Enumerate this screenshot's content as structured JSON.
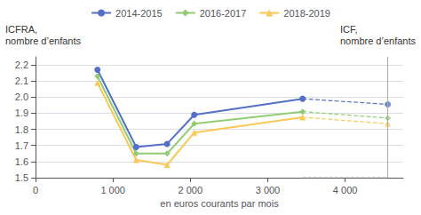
{
  "chart_data": {
    "type": "line",
    "xlabel": "en euros courants par mois",
    "ylabel": [
      "ICFRA,",
      "nombre d’enfants"
    ],
    "y2label": [
      "ICF,",
      "nombre d’enfants"
    ],
    "xlim": [
      0,
      4750
    ],
    "xticks": [
      0,
      {
        "value": 1000,
        "label": "1 000"
      },
      {
        "value": 2000,
        "label": "2 000"
      },
      {
        "value": 3000,
        "label": "3 000"
      },
      {
        "value": 4000,
        "label": "4 000"
      }
    ],
    "ylim": [
      1.5,
      2.25
    ],
    "yticks": [
      1.5,
      1.6,
      1.7,
      1.8,
      1.9,
      {
        "value": 2.0,
        "label": "2.0"
      },
      2.1,
      2.2
    ],
    "grid": "y",
    "legend": "top",
    "icf_x": 4550,
    "baseline": {
      "x": [
        3450,
        4550
      ],
      "y": 1.5
    },
    "series": [
      {
        "name": "2014-2015",
        "marker": "circle",
        "x": [
          800,
          1300,
          1700,
          2050,
          3450
        ],
        "values": [
          2.17,
          1.69,
          1.71,
          1.89,
          1.99
        ],
        "icf_value": 1.955
      },
      {
        "name": "2016-2017",
        "marker": "diamond",
        "x": [
          800,
          1300,
          1700,
          2050,
          3450
        ],
        "values": [
          2.13,
          1.65,
          1.65,
          1.835,
          1.91
        ],
        "icf_value": 1.87
      },
      {
        "name": "2018-2019",
        "marker": "triangle",
        "x": [
          800,
          1300,
          1700,
          2050,
          3450
        ],
        "values": [
          2.09,
          1.61,
          1.58,
          1.78,
          1.875
        ],
        "icf_value": 1.835
      }
    ]
  }
}
